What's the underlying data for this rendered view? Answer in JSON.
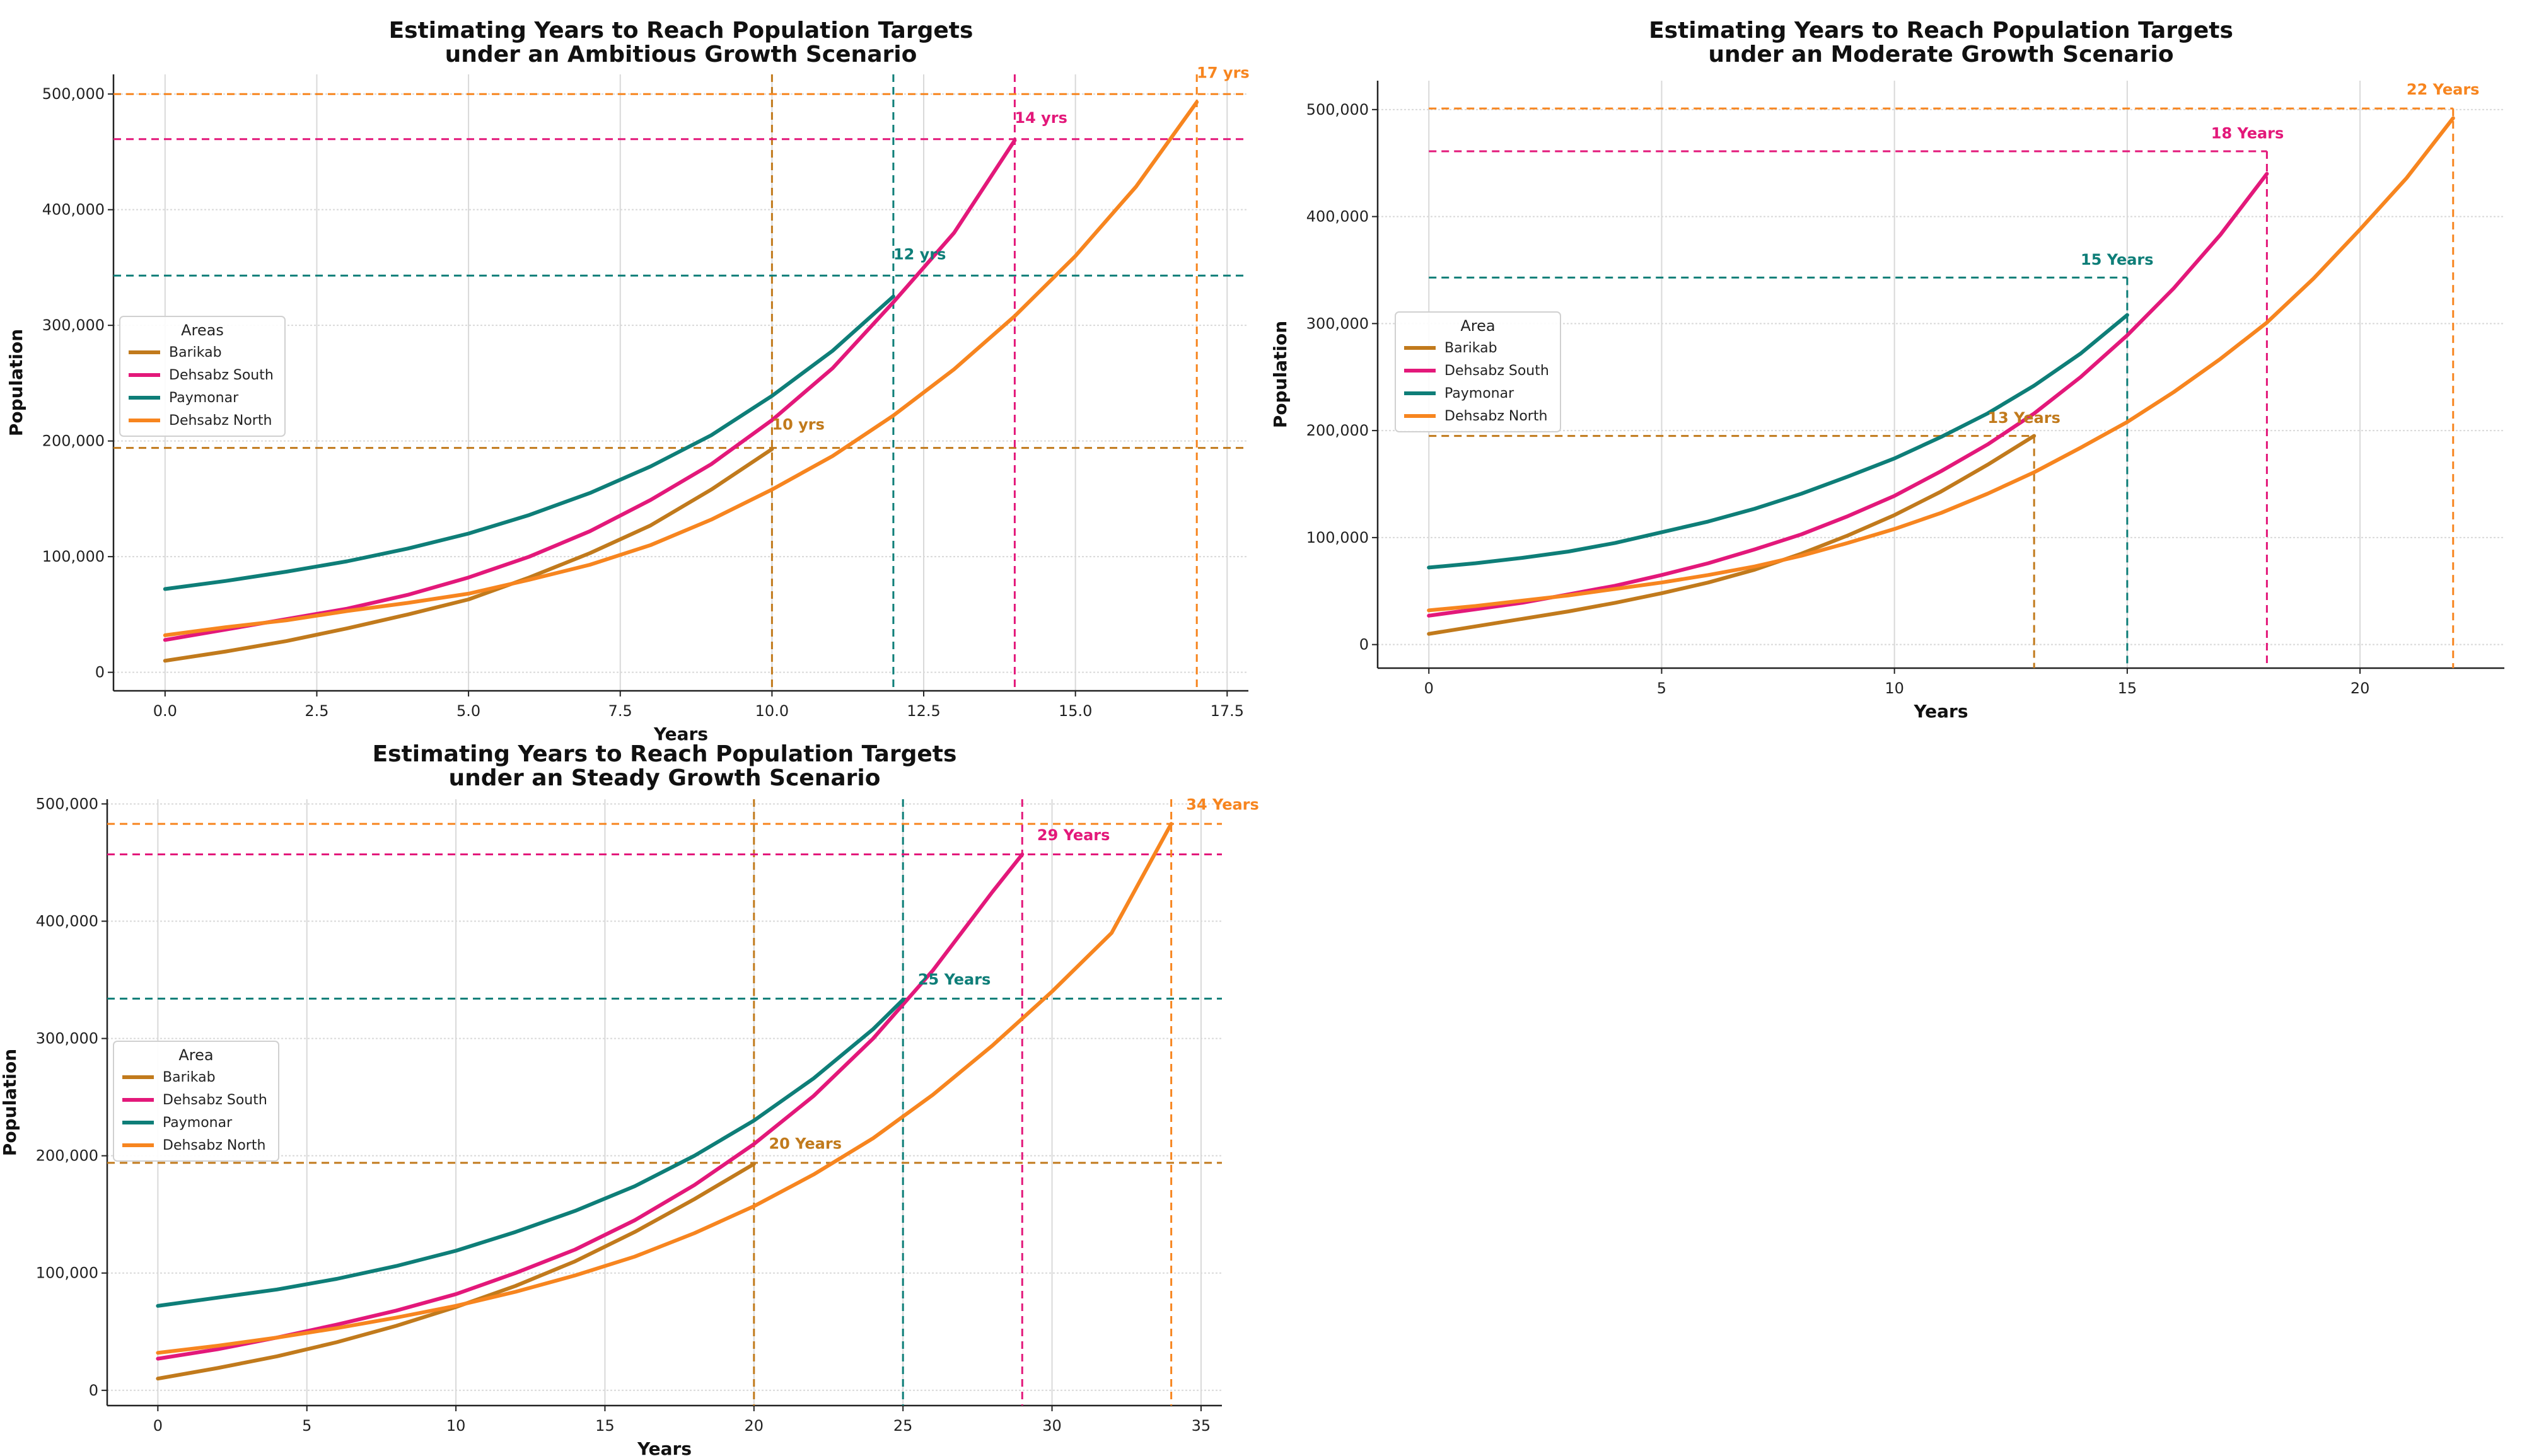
{
  "colors": {
    "barikab": "#c17a1c",
    "dehsabz_south": "#e3187a",
    "paymonar": "#0e7e78",
    "dehsabz_north": "#f7851f",
    "grid": "#d9d9d9",
    "axis": "#222222"
  },
  "chart_data": [
    {
      "type": "line",
      "title": "Estimating Years to Reach Population Targets\nunder an Ambitious Growth Scenario",
      "xlabel": "Years",
      "ylabel": "Population",
      "xlim": [
        -0.85,
        17.85
      ],
      "ylim": [
        -16000,
        517000
      ],
      "xticks": [
        0,
        2.5,
        5,
        7.5,
        10,
        12.5,
        15,
        17.5
      ],
      "xtick_labels": [
        "0.0",
        "2.5",
        "5.0",
        "7.5",
        "10.0",
        "12.5",
        "15.0",
        "17.5"
      ],
      "yticks": [
        0,
        100000,
        200000,
        300000,
        400000,
        500000
      ],
      "ytick_labels": [
        "0",
        "100,000",
        "200,000",
        "300,000",
        "400,000",
        "500,000"
      ],
      "legend_title": "Areas",
      "legend_position": "center-left",
      "series": [
        {
          "name": "Barikab",
          "color_key": "barikab",
          "x": [
            0,
            1,
            2,
            3,
            4,
            5,
            6,
            7,
            8,
            9,
            10
          ],
          "values": [
            10000,
            18000,
            27000,
            38000,
            50000,
            63000,
            82000,
            103000,
            127000,
            158000,
            193000
          ]
        },
        {
          "name": "Dehsabz South",
          "color_key": "dehsabz_south",
          "x": [
            0,
            1,
            2,
            3,
            4,
            5,
            6,
            7,
            8,
            9,
            10,
            11,
            12,
            13,
            14
          ],
          "values": [
            28000,
            37000,
            46000,
            55000,
            67000,
            82000,
            100000,
            122000,
            149000,
            180000,
            218000,
            263000,
            320000,
            380000,
            460000
          ]
        },
        {
          "name": "Paymonar",
          "color_key": "paymonar",
          "x": [
            0,
            1,
            2,
            3,
            4,
            5,
            6,
            7,
            8,
            9,
            10,
            11,
            12
          ],
          "values": [
            72000,
            79000,
            87000,
            96000,
            107000,
            120000,
            136000,
            155000,
            178000,
            205000,
            239000,
            278000,
            325000
          ]
        },
        {
          "name": "Dehsabz North",
          "color_key": "dehsabz_north",
          "x": [
            0,
            1,
            2,
            3,
            4,
            5,
            6,
            7,
            8,
            9,
            10,
            11,
            12,
            13,
            14,
            15,
            16,
            17
          ],
          "values": [
            32000,
            39000,
            45000,
            53000,
            60000,
            68000,
            80000,
            93000,
            110000,
            132000,
            158000,
            187000,
            222000,
            262000,
            308000,
            360000,
            420000,
            493000
          ]
        }
      ],
      "targets": [
        {
          "color_key": "barikab",
          "year": 10,
          "population": 194000,
          "label": "10 yrs",
          "x_offset": 0.0,
          "y_value": 210000
        },
        {
          "color_key": "paymonar",
          "year": 12,
          "population": 343000,
          "label": "12 yrs",
          "x_offset": 0.0,
          "y_value": 357000
        },
        {
          "color_key": "dehsabz_south",
          "year": 14,
          "population": 461000,
          "label": "14 yrs",
          "x_offset": 0.0,
          "y_value": 475000
        },
        {
          "color_key": "dehsabz_north",
          "year": 17,
          "population": 500000,
          "label": "17 yrs",
          "x_offset": 0.0,
          "y_value": 514000
        }
      ],
      "target_style": "full"
    },
    {
      "type": "line",
      "title": "Estimating Years to Reach Population Targets\nunder an Moderate Growth Scenario",
      "xlabel": "Years",
      "ylabel": "Population",
      "xlim": [
        -1.1,
        23.1
      ],
      "ylim": [
        -22000,
        527000
      ],
      "xticks": [
        0,
        5,
        10,
        15,
        20
      ],
      "xtick_labels": [
        "0",
        "5",
        "10",
        "15",
        "20"
      ],
      "yticks": [
        0,
        100000,
        200000,
        300000,
        400000,
        500000
      ],
      "ytick_labels": [
        "0",
        "100,000",
        "200,000",
        "300,000",
        "400,000",
        "500,000"
      ],
      "legend_title": "Area",
      "legend_position": "center-left",
      "series": [
        {
          "name": "Barikab",
          "color_key": "barikab",
          "x": [
            0,
            1,
            2,
            3,
            4,
            5,
            6,
            7,
            8,
            9,
            10,
            11,
            12,
            13
          ],
          "values": [
            10000,
            17000,
            24000,
            31000,
            39000,
            48000,
            58000,
            70000,
            85000,
            102000,
            121000,
            143000,
            168000,
            195000
          ]
        },
        {
          "name": "Dehsabz South",
          "color_key": "dehsabz_south",
          "x": [
            0,
            1,
            2,
            3,
            4,
            5,
            6,
            7,
            8,
            9,
            10,
            11,
            12,
            13,
            14,
            15,
            16,
            17,
            18
          ],
          "values": [
            27000,
            33000,
            39000,
            47000,
            55000,
            65000,
            76000,
            89000,
            103000,
            120000,
            139000,
            162000,
            187000,
            216000,
            250000,
            289000,
            333000,
            383000,
            440000
          ]
        },
        {
          "name": "Paymonar",
          "color_key": "paymonar",
          "x": [
            0,
            1,
            2,
            3,
            4,
            5,
            6,
            7,
            8,
            9,
            10,
            11,
            12,
            13,
            14,
            15
          ],
          "values": [
            72000,
            76000,
            81000,
            87000,
            95000,
            105000,
            115000,
            127000,
            141000,
            157000,
            174000,
            194000,
            216000,
            242000,
            272000,
            308000
          ]
        },
        {
          "name": "Dehsabz North",
          "color_key": "dehsabz_north",
          "x": [
            0,
            1,
            2,
            3,
            4,
            5,
            6,
            7,
            8,
            9,
            10,
            11,
            12,
            13,
            14,
            15,
            16,
            17,
            18,
            19,
            20,
            21,
            22
          ],
          "values": [
            32000,
            36000,
            41000,
            46000,
            52000,
            58000,
            65000,
            73000,
            83000,
            95000,
            108000,
            123000,
            141000,
            161000,
            184000,
            208000,
            236000,
            267000,
            301000,
            342000,
            388000,
            436000,
            492000
          ]
        }
      ],
      "targets": [
        {
          "color_key": "barikab",
          "year": 13,
          "population": 195000,
          "label": "13 Years",
          "x_offset": -1.0,
          "y_value": 207000
        },
        {
          "color_key": "paymonar",
          "year": 15,
          "population": 343000,
          "label": "15 Years",
          "x_offset": -1.0,
          "y_value": 355000
        },
        {
          "color_key": "dehsabz_south",
          "year": 18,
          "population": 461000,
          "label": "18 Years",
          "x_offset": -1.2,
          "y_value": 473000
        },
        {
          "color_key": "dehsabz_north",
          "year": 22,
          "population": 501000,
          "label": "22 Years",
          "x_offset": -1.0,
          "y_value": 514000
        }
      ],
      "target_style": "bracket"
    },
    {
      "type": "line",
      "title": "Estimating Years to Reach Population Targets\nunder an Steady Growth Scenario",
      "xlabel": "Years",
      "ylabel": "Population",
      "xlim": [
        -1.7,
        35.7
      ],
      "ylim": [
        -13000,
        504000
      ],
      "xticks": [
        0,
        5,
        10,
        15,
        20,
        25,
        30,
        35
      ],
      "xtick_labels": [
        "0",
        "5",
        "10",
        "15",
        "20",
        "25",
        "30",
        "35"
      ],
      "yticks": [
        0,
        100000,
        200000,
        300000,
        400000,
        500000
      ],
      "ytick_labels": [
        "0",
        "100,000",
        "200,000",
        "300,000",
        "400,000",
        "500,000"
      ],
      "legend_title": "Area",
      "legend_position": "center-left",
      "series": [
        {
          "name": "Barikab",
          "color_key": "barikab",
          "x": [
            0,
            2,
            4,
            6,
            8,
            10,
            12,
            14,
            16,
            18,
            20
          ],
          "values": [
            10000,
            19000,
            29000,
            41000,
            55000,
            71000,
            89000,
            110000,
            135000,
            163000,
            193000
          ]
        },
        {
          "name": "Dehsabz South",
          "color_key": "dehsabz_south",
          "x": [
            0,
            2,
            4,
            6,
            8,
            10,
            12,
            14,
            16,
            18,
            20,
            22,
            24,
            26,
            28,
            29
          ],
          "values": [
            27000,
            35000,
            45000,
            56000,
            68000,
            82000,
            100000,
            120000,
            145000,
            175000,
            210000,
            251000,
            300000,
            358000,
            425000,
            457000
          ]
        },
        {
          "name": "Paymonar",
          "color_key": "paymonar",
          "x": [
            0,
            2,
            4,
            6,
            8,
            10,
            12,
            14,
            16,
            18,
            20,
            22,
            24,
            25
          ],
          "values": [
            72000,
            79000,
            86000,
            95000,
            106000,
            119000,
            135000,
            153000,
            174000,
            200000,
            230000,
            266000,
            308000,
            333000
          ]
        },
        {
          "name": "Dehsabz North",
          "color_key": "dehsabz_north",
          "x": [
            0,
            2,
            4,
            6,
            8,
            10,
            12,
            14,
            16,
            18,
            20,
            22,
            24,
            26,
            28,
            30,
            32,
            34
          ],
          "values": [
            32000,
            38000,
            45000,
            53000,
            62000,
            72000,
            84000,
            98000,
            114000,
            134000,
            157000,
            184000,
            215000,
            252000,
            294000,
            340000,
            390000,
            483000
          ]
        }
      ],
      "targets": [
        {
          "color_key": "barikab",
          "year": 20,
          "population": 194000,
          "label": "20 Years",
          "x_offset": 0.5,
          "y_value": 206000
        },
        {
          "color_key": "paymonar",
          "year": 25,
          "population": 334000,
          "label": "25 Years",
          "x_offset": 0.5,
          "y_value": 346000
        },
        {
          "color_key": "dehsabz_south",
          "year": 29,
          "population": 457000,
          "label": "29 Years",
          "x_offset": 0.5,
          "y_value": 469000
        },
        {
          "color_key": "dehsabz_north",
          "year": 34,
          "population": 483000,
          "label": "34 Years",
          "x_offset": 0.5,
          "y_value": 495000
        }
      ],
      "target_style": "full"
    }
  ]
}
